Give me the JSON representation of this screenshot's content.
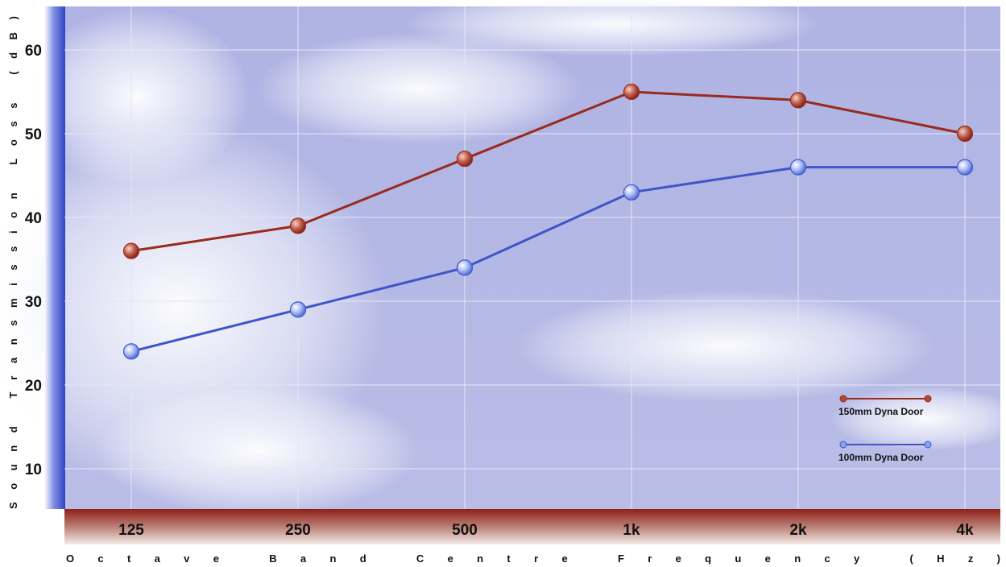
{
  "chart_data": {
    "type": "line",
    "categories": [
      "125",
      "250",
      "500",
      "1k",
      "2k",
      "4k"
    ],
    "series": [
      {
        "name": "150mm Dyna Door",
        "values": [
          36,
          39,
          47,
          55,
          54,
          50
        ],
        "color": "#9a2a1e",
        "marker_color": "#b04a3a"
      },
      {
        "name": "100mm Dyna Door",
        "values": [
          24,
          29,
          34,
          43,
          46,
          46
        ],
        "color": "#3f55c8",
        "marker_color": "#8aa2ee"
      }
    ],
    "ylabel": "Sound Transmission Loss (dB)",
    "xlabel": "Octave Band Centre Frequency (Hz)",
    "yticks": [
      10,
      20,
      30,
      40,
      50,
      60
    ],
    "ylim": [
      5,
      65
    ],
    "grid": true,
    "legend_position": "bottom-right",
    "colors": {
      "plot_background": "#a8b0e0",
      "x_band": "#9b2a20",
      "y_band": "#3346c4"
    }
  }
}
